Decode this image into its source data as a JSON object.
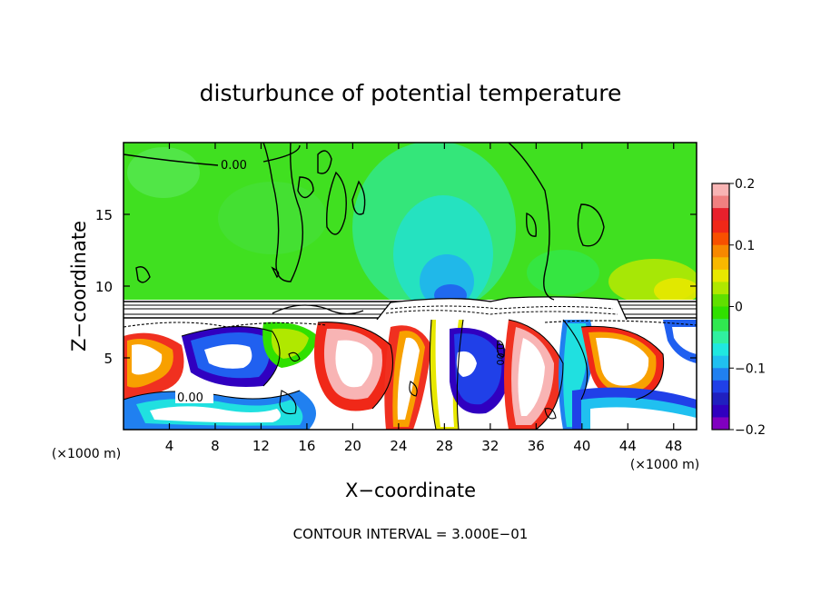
{
  "chart_data": {
    "type": "heatmap",
    "title": "disturbunce of potential temperature",
    "xlabel": "X−coordinate",
    "ylabel": "Z−coordinate",
    "x_unit": "(×1000 m)",
    "z_unit": "(×1000 m)",
    "xlim": [
      0,
      50
    ],
    "ylim": [
      0,
      20
    ],
    "x_ticks": [
      "4",
      "8",
      "12",
      "16",
      "20",
      "24",
      "28",
      "32",
      "36",
      "40",
      "44",
      "48"
    ],
    "x_tick_values": [
      4,
      8,
      12,
      16,
      20,
      24,
      28,
      32,
      36,
      40,
      44,
      48
    ],
    "y_ticks": [
      "5",
      "10",
      "15"
    ],
    "y_tick_values": [
      5,
      10,
      15
    ],
    "colorbar": {
      "min": -0.2,
      "max": 0.2,
      "tick_labels": [
        "0.2",
        "0.1",
        "0",
        "−0.1",
        "−0.2"
      ],
      "tick_values": [
        0.2,
        0.1,
        0,
        -0.1,
        -0.2
      ],
      "colors": [
        "#f8b4b4",
        "#f08080",
        "#e8202c",
        "#f02818",
        "#f85000",
        "#f88800",
        "#f8b800",
        "#e8e800",
        "#b0e800",
        "#60e000",
        "#30e000",
        "#30e850",
        "#30f0a0",
        "#20e8e0",
        "#20c0f0",
        "#2080f0",
        "#2040e8",
        "#2020c0",
        "#3000c0",
        "#8000c0"
      ]
    },
    "contour_labels": [
      "0.00",
      "0.00",
      "0.00"
    ],
    "footer": "CONTOUR INTERVAL = 3.000E−01"
  }
}
